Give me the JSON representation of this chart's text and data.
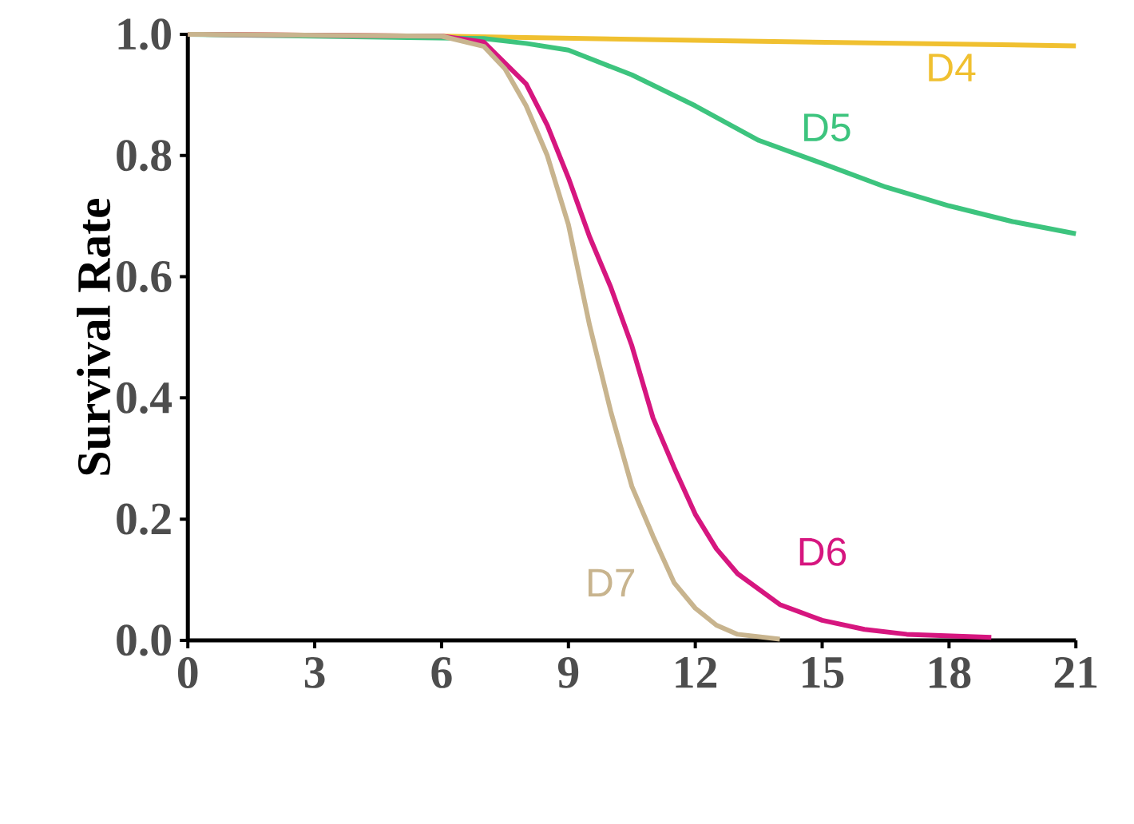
{
  "chart_data": {
    "type": "line",
    "ylabel": "Survival Rate",
    "xlim": [
      0,
      21
    ],
    "ylim": [
      0,
      1
    ],
    "xticks": [
      0,
      3,
      6,
      9,
      12,
      15,
      18,
      21
    ],
    "yticks": [
      {
        "value": 0,
        "label": "0.0"
      },
      {
        "value": 0.2,
        "label": "0.2"
      },
      {
        "value": 0.4,
        "label": "0.4"
      },
      {
        "value": 0.6,
        "label": "0.6"
      },
      {
        "value": 0.8,
        "label": "0.8"
      },
      {
        "value": 1,
        "label": "1.0"
      }
    ],
    "grid": false,
    "legend": false,
    "marker": "none",
    "line_style": "solid",
    "series": [
      {
        "name": "D4",
        "color": "#f0c030",
        "x": [
          0,
          6,
          12,
          21
        ],
        "values": [
          1.0,
          0.997,
          0.99,
          0.981
        ]
      },
      {
        "name": "D5",
        "color": "#3dc47e",
        "x": [
          0,
          7,
          8,
          9,
          10.5,
          12,
          13.5,
          15,
          16.5,
          18,
          19.5,
          21
        ],
        "values": [
          1.0,
          0.993,
          0.985,
          0.974,
          0.933,
          0.882,
          0.825,
          0.787,
          0.748,
          0.717,
          0.691,
          0.671
        ]
      },
      {
        "name": "D6",
        "color": "#d6167f",
        "x": [
          0,
          6,
          7,
          8,
          8.5,
          9,
          9.5,
          10,
          10.5,
          11,
          11.5,
          12,
          12.5,
          13,
          14,
          15,
          16,
          17,
          19
        ],
        "values": [
          1.0,
          0.997,
          0.987,
          0.918,
          0.85,
          0.763,
          0.666,
          0.583,
          0.486,
          0.367,
          0.285,
          0.208,
          0.151,
          0.11,
          0.059,
          0.033,
          0.018,
          0.01,
          0.005
        ]
      },
      {
        "name": "D7",
        "color": "#c8b48e",
        "x": [
          0,
          6,
          7,
          7.5,
          8,
          8.5,
          9,
          9.5,
          10,
          10.5,
          11,
          11.5,
          12,
          12.5,
          13,
          14
        ],
        "values": [
          1.0,
          0.997,
          0.98,
          0.943,
          0.882,
          0.8,
          0.686,
          0.52,
          0.378,
          0.254,
          0.172,
          0.095,
          0.053,
          0.025,
          0.01,
          0.002
        ]
      }
    ]
  }
}
